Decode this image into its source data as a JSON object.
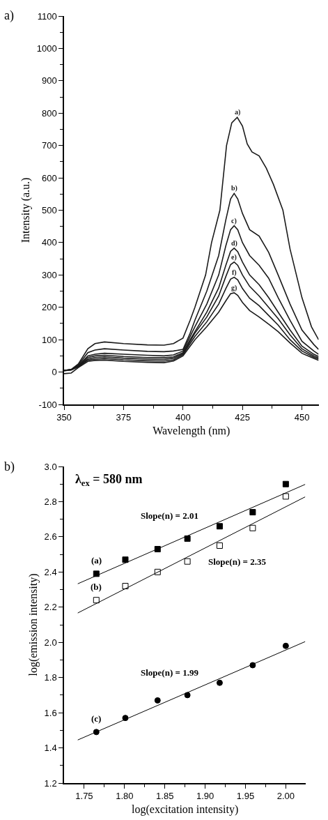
{
  "chart_data": [
    {
      "type": "line",
      "xlabel": "Wavelength (nm)",
      "ylabel": "Intensity (a.u.)",
      "annotations": [
        "a)"
      ],
      "xlim": [
        350,
        457
      ],
      "xticks": [
        350,
        375,
        400,
        425,
        450
      ],
      "ylim": [
        -100,
        1100
      ],
      "yticks": [
        -100,
        0,
        100,
        200,
        300,
        400,
        500,
        600,
        700,
        800,
        900,
        1000,
        1100
      ],
      "marker": "none",
      "line_style": "solid",
      "x": [
        350,
        353,
        356,
        360,
        363,
        367,
        375,
        385,
        392,
        396,
        400,
        403,
        405,
        410,
        415,
        418,
        420,
        421.5,
        423,
        425,
        428,
        432,
        436,
        440,
        445,
        450,
        455,
        457
      ],
      "series": [
        {
          "name": "a)",
          "color": "#1a1a1a",
          "x": [
            350,
            353,
            356,
            360,
            363,
            367,
            375,
            385,
            392,
            396,
            400,
            403,
            405,
            409.5,
            412,
            415.5,
            418.3,
            420.5,
            422.8,
            425,
            427,
            429,
            432,
            435,
            438,
            442,
            445,
            450,
            454,
            457
          ],
          "values": [
            5,
            8,
            25,
            72,
            88,
            93,
            88,
            84,
            83,
            88,
            105,
            160,
            200,
            300,
            400,
            500,
            700,
            770,
            787,
            760,
            705,
            680,
            668,
            630,
            580,
            500,
            380,
            230,
            140,
            100
          ]
        },
        {
          "name": "b)",
          "color": "#1a1a1a",
          "values": [
            5,
            8,
            22,
            60,
            68,
            72,
            68,
            64,
            63,
            65,
            70,
            120,
            160,
            250,
            360,
            470,
            535,
            552,
            535,
            490,
            440,
            420,
            370,
            300,
            210,
            130,
            85,
            70
          ]
        },
        {
          "name": "c)",
          "color": "#1a1a1a",
          "values": [
            5,
            7,
            20,
            50,
            55,
            58,
            55,
            52,
            50,
            53,
            65,
            110,
            140,
            210,
            300,
            390,
            440,
            452,
            440,
            400,
            360,
            330,
            290,
            230,
            160,
            95,
            65,
            55
          ]
        },
        {
          "name": "d)",
          "color": "#1a1a1a",
          "values": [
            5,
            7,
            18,
            45,
            50,
            52,
            48,
            45,
            44,
            47,
            60,
            100,
            125,
            185,
            260,
            330,
            373,
            383,
            372,
            340,
            300,
            270,
            230,
            185,
            130,
            80,
            55,
            48
          ]
        },
        {
          "name": "e)",
          "color": "#1a1a1a",
          "values": [
            4,
            7,
            17,
            40,
            45,
            47,
            43,
            40,
            39,
            43,
            57,
            95,
            120,
            170,
            235,
            295,
            332,
            340,
            330,
            300,
            265,
            235,
            200,
            165,
            115,
            72,
            50,
            44
          ]
        },
        {
          "name": "f)",
          "color": "#1a1a1a",
          "values": [
            4,
            6,
            16,
            37,
            40,
            42,
            38,
            35,
            34,
            38,
            54,
            88,
            110,
            155,
            210,
            258,
            287,
            293,
            285,
            258,
            228,
            205,
            175,
            145,
            100,
            65,
            46,
            40
          ]
        },
        {
          "name": "g)",
          "color": "#1a1a1a",
          "values": [
            -5,
            -3,
            14,
            33,
            36,
            37,
            33,
            30,
            29,
            34,
            50,
            80,
            100,
            140,
            185,
            220,
            242,
            245,
            237,
            215,
            190,
            170,
            148,
            125,
            90,
            58,
            42,
            36
          ]
        }
      ]
    },
    {
      "type": "scatter",
      "xlabel": "log(excitation intensity)",
      "ylabel": "log(emission intensity)",
      "xlim": [
        1.725,
        2.025
      ],
      "xticks": [
        {
          "value": 1.75,
          "label": "1.75"
        },
        {
          "value": 1.8,
          "label": "1.80"
        },
        1.85,
        {
          "value": 1.9,
          "label": "1.90"
        },
        1.95,
        {
          "value": 2.0,
          "label": "2.00"
        }
      ],
      "ylim": [
        1.2,
        3.0
      ],
      "yticks": [
        1.2,
        1.4,
        1.6,
        1.8,
        {
          "value": 2.0,
          "label": "2.0"
        },
        2.2,
        2.4,
        2.6,
        2.8,
        {
          "value": 3.0,
          "label": "3.0"
        }
      ],
      "annotations": [
        "b)",
        "λ$_{ex}$ = 580 nm",
        "Slope(n) = 2.01",
        "Slope(n) = 2.35",
        "Slope(n) = 1.99"
      ],
      "x": [
        1.765,
        1.801,
        1.841,
        1.878,
        1.918,
        1.959,
        2.0
      ],
      "series": [
        {
          "name": "(a)",
          "color": "#000000",
          "marker": "square",
          "values": [
            2.39,
            2.47,
            2.53,
            2.59,
            2.66,
            2.74,
            2.9
          ]
        },
        {
          "name": "(b)",
          "color": "#ffffff",
          "marker": "square",
          "values": [
            2.24,
            2.32,
            2.4,
            2.46,
            2.55,
            2.65,
            2.83
          ]
        },
        {
          "name": "(c)",
          "color": "#000000",
          "marker": "circle",
          "values": [
            1.49,
            1.57,
            1.67,
            1.7,
            1.77,
            1.87,
            1.98
          ]
        },
        {
          "type": "line",
          "color": "#000000",
          "x": [
            1.742,
            2.024
          ],
          "values": [
            2.333,
            2.898
          ]
        },
        {
          "type": "line",
          "color": "#000000",
          "x": [
            1.742,
            2.024
          ],
          "values": [
            2.167,
            2.827
          ]
        },
        {
          "type": "line",
          "color": "#000000",
          "x": [
            1.742,
            2.024
          ],
          "values": [
            1.445,
            2.004
          ]
        }
      ]
    }
  ]
}
